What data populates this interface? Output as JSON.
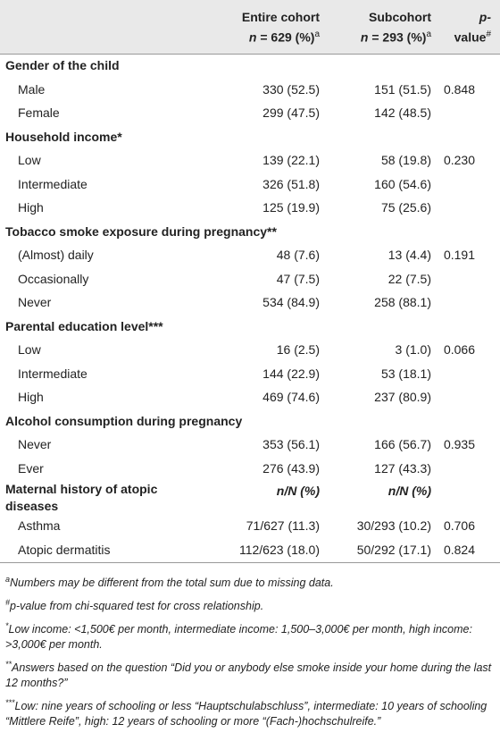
{
  "header": {
    "entire": {
      "title": "Entire cohort",
      "n": "n",
      "rest": " = 629 (%)",
      "sup": "a"
    },
    "sub": {
      "title": "Subcohort",
      "n": "n",
      "rest": " = 293 (%)",
      "sup": "a"
    },
    "p": {
      "p": "p-",
      "rest": "value",
      "sup": "#"
    }
  },
  "sections": [
    {
      "title": "Gender of the child",
      "rows": [
        {
          "label": "Male",
          "entire": "330 (52.5)",
          "sub": "151 (51.5)",
          "p": "0.848"
        },
        {
          "label": "Female",
          "entire": "299 (47.5)",
          "sub": "142 (48.5)"
        }
      ]
    },
    {
      "title": "Household income*",
      "rows": [
        {
          "label": "Low",
          "entire": "139 (22.1)",
          "sub": "58 (19.8)",
          "p": "0.230"
        },
        {
          "label": "Intermediate",
          "entire": "326 (51.8)",
          "sub": "160 (54.6)"
        },
        {
          "label": "High",
          "entire": "125 (19.9)",
          "sub": "75 (25.6)"
        }
      ]
    },
    {
      "title": "Tobacco smoke exposure during pregnancy**",
      "rows": [
        {
          "label": "(Almost) daily",
          "entire": "48 (7.6)",
          "sub": "13 (4.4)",
          "p": "0.191"
        },
        {
          "label": "Occasionally",
          "entire": "47 (7.5)",
          "sub": "22 (7.5)"
        },
        {
          "label": "Never",
          "entire": "534 (84.9)",
          "sub": "258 (88.1)"
        }
      ]
    },
    {
      "title": "Parental education level***",
      "rows": [
        {
          "label": "Low",
          "entire": "16 (2.5)",
          "sub": "3 (1.0)",
          "p": "0.066"
        },
        {
          "label": "Intermediate",
          "entire": "144 (22.9)",
          "sub": "53 (18.1)"
        },
        {
          "label": "High",
          "entire": "469 (74.6)",
          "sub": "237 (80.9)"
        }
      ]
    },
    {
      "title": "Alcohol consumption during pregnancy",
      "rows": [
        {
          "label": "Never",
          "entire": "353 (56.1)",
          "sub": "166 (56.7)",
          "p": "0.935"
        },
        {
          "label": "Ever",
          "entire": "276 (43.9)",
          "sub": "127 (43.3)"
        }
      ]
    },
    {
      "title": "Maternal history of atopic diseases",
      "entire": "n/N (%)",
      "sub": "n/N (%)",
      "rows": [
        {
          "label": "Asthma",
          "entire": "71/627 (11.3)",
          "sub": "30/293 (10.2)",
          "p": "0.706"
        },
        {
          "label": "Atopic dermatitis",
          "entire": "112/623 (18.0)",
          "sub": "50/292 (17.1)",
          "p": "0.824"
        }
      ]
    }
  ],
  "footnotes": [
    {
      "mark": "a",
      "text": "Numbers may be different from the total sum due to missing data."
    },
    {
      "mark": "#",
      "text": "p-value from chi-squared test for cross relationship."
    },
    {
      "mark": "*",
      "text": "Low income: <1,500€ per month, intermediate income: 1,500–3,000€ per month, high income: >3,000€ per month."
    },
    {
      "mark": "**",
      "text": "Answers based on the question “Did you or anybody else smoke inside your home during the last 12 months?”"
    },
    {
      "mark": "***",
      "text": "Low: nine years of schooling or less “Hauptschulabschluss”, intermediate: 10 years of schooling “Mittlere Reife”, high: 12 years of schooling or more “(Fach-)hochschulreife.”"
    }
  ]
}
